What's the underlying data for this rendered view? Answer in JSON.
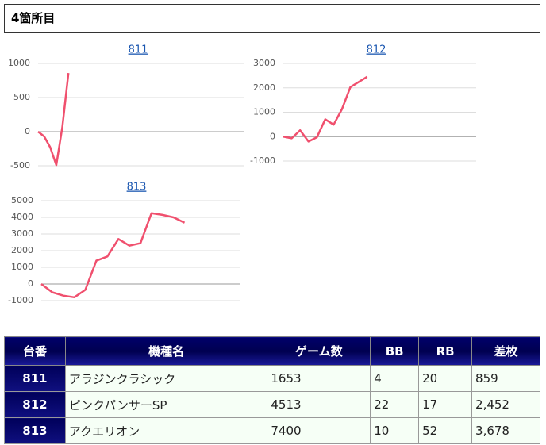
{
  "header": {
    "title": "4箇所目"
  },
  "chart_data": [
    {
      "type": "line",
      "title": "811",
      "color": "#f0506e",
      "grid": true,
      "x": [
        0,
        1,
        2,
        3,
        4,
        5
      ],
      "xlim": [
        0,
        34
      ],
      "values": [
        0,
        -70,
        -230,
        -490,
        70,
        859
      ],
      "ylim": [
        -500,
        1000
      ],
      "yticks": [
        -500,
        0,
        500,
        1000
      ]
    },
    {
      "type": "line",
      "title": "812",
      "color": "#f0506e",
      "grid": true,
      "x": [
        0,
        1,
        2,
        3,
        4,
        5,
        6,
        7,
        8,
        10
      ],
      "xlim": [
        0,
        23
      ],
      "values": [
        0,
        -70,
        260,
        -200,
        -30,
        710,
        490,
        1130,
        2030,
        2452
      ],
      "ylim": [
        -1000,
        3000
      ],
      "yticks": [
        -1000,
        0,
        1000,
        2000,
        3000
      ]
    },
    {
      "type": "line",
      "title": "813",
      "color": "#f0506e",
      "grid": true,
      "x": [
        0,
        1,
        2,
        3,
        4,
        5,
        6,
        7,
        8,
        9,
        10,
        11,
        12,
        13
      ],
      "xlim": [
        0,
        18
      ],
      "values": [
        0,
        -500,
        -700,
        -800,
        -350,
        1400,
        1650,
        2700,
        2300,
        2450,
        4250,
        4150,
        4000,
        3678
      ],
      "ylim": [
        -1000,
        5000
      ],
      "yticks": [
        -1000,
        0,
        1000,
        2000,
        3000,
        4000,
        5000
      ]
    }
  ],
  "table": {
    "headers": [
      "台番",
      "機種名",
      "ゲーム数",
      "BB",
      "RB",
      "差枚"
    ],
    "rows": [
      [
        "811",
        "アラジンクラシック",
        "1653",
        "4",
        "20",
        "859"
      ],
      [
        "812",
        "ピンクパンサーSP",
        "4513",
        "22",
        "17",
        "2,452"
      ],
      [
        "813",
        "アクエリオン",
        "7400",
        "10",
        "52",
        "3,678"
      ]
    ]
  }
}
